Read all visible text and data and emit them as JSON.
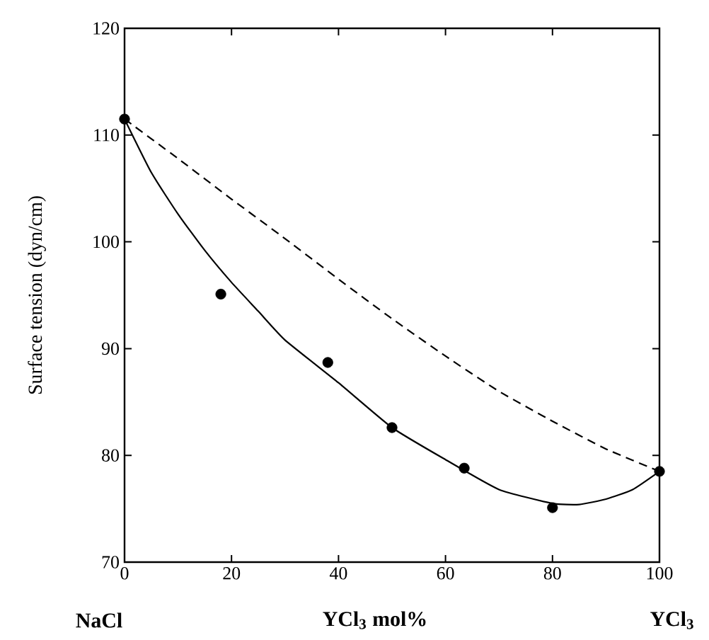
{
  "chart_data": {
    "type": "line",
    "xlabel": "YCl$_{3}$ mol%",
    "ylabel": "Surface tension  (dyn/cm)",
    "xlim": [
      0,
      100
    ],
    "xticks": [
      0,
      20,
      40,
      60,
      80,
      100
    ],
    "ylim": [
      70,
      120
    ],
    "yticks": [
      70,
      80,
      90,
      100,
      110,
      120
    ],
    "grid": false,
    "marker": "circle",
    "annotations": [
      "NaCl",
      "YCl$_{3}$"
    ],
    "series": [
      {
        "type": "scatter",
        "color": "#000000",
        "x": [
          0,
          18,
          38,
          50,
          63.5,
          80,
          100
        ],
        "values": [
          111.5,
          95.1,
          88.7,
          82.6,
          78.8,
          75.1,
          78.5
        ]
      },
      {
        "line_style": "solid",
        "marker": "none",
        "color": "#000000",
        "x": [
          0,
          5,
          10,
          15,
          20,
          25,
          30,
          40,
          50,
          60,
          70,
          80,
          85,
          90,
          95,
          100
        ],
        "values": [
          111.5,
          106.5,
          102.6,
          99.2,
          96.2,
          93.5,
          90.8,
          86.8,
          82.6,
          79.6,
          76.8,
          75.5,
          75.4,
          75.9,
          76.8,
          78.5
        ]
      },
      {
        "line_style": "dashed",
        "marker": "none",
        "color": "#000000",
        "x": [
          0,
          10,
          20,
          30,
          40,
          50,
          60,
          70,
          80,
          90,
          100
        ],
        "values": [
          111.5,
          107.8,
          104.0,
          100.3,
          96.5,
          92.8,
          89.3,
          86.0,
          83.2,
          80.6,
          78.5
        ]
      }
    ]
  }
}
